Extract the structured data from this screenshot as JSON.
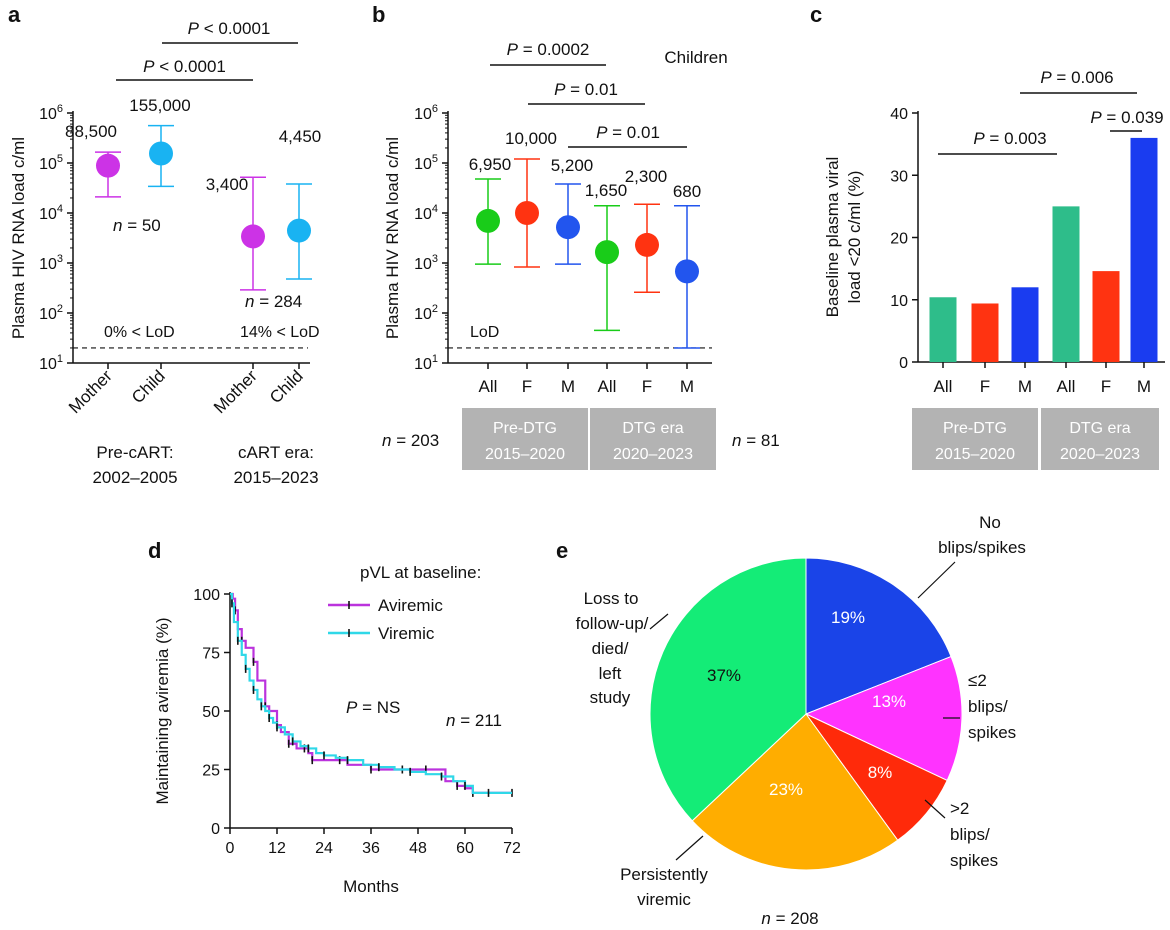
{
  "colors": {
    "magenta": "#cc33e6",
    "cyan": "#19b3f2",
    "green": "#19cc19",
    "red": "#ff3311",
    "blue": "#2255ee",
    "teal": "#2ebd8a",
    "bar_red": "#ff3311",
    "bar_blue": "#1a3cf0",
    "pie_green": "#14ec77",
    "pie_blue": "#1a44e8",
    "pie_magenta": "#ff33ff",
    "pie_red": "#ff2a0a",
    "pie_orange": "#ffad00",
    "km_aviremic": "#bb33dd",
    "km_viremic": "#2fd8e8",
    "group_box": "#b3b3b3"
  },
  "panel_letters": [
    "a",
    "b",
    "c",
    "d",
    "e"
  ],
  "chart_data": [
    {
      "panel": "a",
      "type": "scatter",
      "ylabel": "Plasma HIV RNA load c/ml",
      "yscale": "log",
      "ylim": [
        10,
        1000000
      ],
      "yticks": [
        "10",
        "10",
        "10",
        "10",
        "10",
        "10"
      ],
      "ytick_exponents": [
        "1",
        "2",
        "3",
        "4",
        "5",
        "6"
      ],
      "categories": [
        "Mother",
        "Child",
        "Mother",
        "Child"
      ],
      "medians": [
        88500,
        155000,
        3400,
        4450
      ],
      "median_labels": [
        "88,500",
        "155,000",
        "3,400",
        "4,450"
      ],
      "whisker_low": [
        21000,
        34000,
        290,
        480
      ],
      "whisker_high": [
        165000,
        560000,
        52000,
        38000
      ],
      "colors": [
        "#cc33e6",
        "#19b3f2",
        "#cc33e6",
        "#19b3f2"
      ],
      "groups": [
        {
          "line1": "Pre-cART:",
          "line2": "2002–2005",
          "n_italic": "n",
          "n_value": " = 50",
          "lod": "0% < LoD"
        },
        {
          "line1": "cART era:",
          "line2": "2015–2023",
          "n_italic": "n",
          "n_value": " = 284",
          "lod": "14% < LoD"
        }
      ],
      "lod_value": 20,
      "comparisons": [
        {
          "p_italic": "P",
          "p_value": " < 0.0001"
        },
        {
          "p_italic": "P",
          "p_value": " < 0.0001"
        }
      ]
    },
    {
      "panel": "b",
      "type": "scatter",
      "title": "Children",
      "ylabel": "Plasma HIV RNA load c/ml",
      "yscale": "log",
      "ylim": [
        10,
        1000000
      ],
      "categories": [
        "All",
        "F",
        "M",
        "All",
        "F",
        "M"
      ],
      "medians": [
        6950,
        10000,
        5200,
        1650,
        2300,
        680
      ],
      "median_labels": [
        "6,950",
        "10,000",
        "5,200",
        "1,650",
        "2,300",
        "680"
      ],
      "whisker_low": [
        950,
        830,
        950,
        45,
        260,
        20
      ],
      "whisker_high": [
        48000,
        120000,
        38000,
        14000,
        15000,
        14000
      ],
      "colors": [
        "#19cc19",
        "#ff3311",
        "#2255ee",
        "#19cc19",
        "#ff3311",
        "#2255ee"
      ],
      "lod_label": "LoD",
      "lod_value": 20,
      "groups": [
        {
          "line1": "Pre-DTG",
          "line2": "2015–2020",
          "n_italic": "n",
          "n_value": " = 203"
        },
        {
          "line1": "DTG era",
          "line2": "2020–2023",
          "n_italic": "n",
          "n_value": " = 81"
        }
      ],
      "comparisons": [
        {
          "p_italic": "P",
          "p_value": " = 0.0002"
        },
        {
          "p_italic": "P",
          "p_value": " = 0.01"
        },
        {
          "p_italic": "P",
          "p_value": " = 0.01"
        }
      ]
    },
    {
      "panel": "c",
      "type": "bar",
      "ylabel_line1": "Baseline plasma viral",
      "ylabel_line2": "load <20 c/ml (%)",
      "ylim": [
        0,
        40
      ],
      "yticks": [
        "0",
        "10",
        "20",
        "30",
        "40"
      ],
      "categories": [
        "All",
        "F",
        "M",
        "All",
        "F",
        "M"
      ],
      "values": [
        10.4,
        9.4,
        12.0,
        25.0,
        14.6,
        36.0
      ],
      "colors": [
        "#2ebd8a",
        "#ff3311",
        "#1a3cf0",
        "#2ebd8a",
        "#ff3311",
        "#1a3cf0"
      ],
      "groups": [
        {
          "line1": "Pre-DTG",
          "line2": "2015–2020"
        },
        {
          "line1": "DTG era",
          "line2": "2020–2023"
        }
      ],
      "comparisons": [
        {
          "p_italic": "P",
          "p_value": " = 0.003"
        },
        {
          "p_italic": "P",
          "p_value": " = 0.006"
        },
        {
          "p_italic": "P",
          "p_value": " = 0.039"
        }
      ]
    },
    {
      "panel": "d",
      "type": "line",
      "xlabel": "Months",
      "ylabel": "Maintaining aviremia (%)",
      "xlim": [
        0,
        72
      ],
      "ylim": [
        0,
        100
      ],
      "xticks": [
        "0",
        "12",
        "24",
        "36",
        "48",
        "60",
        "72"
      ],
      "yticks": [
        "0",
        "25",
        "50",
        "75",
        "100"
      ],
      "legend_title": "pVL at baseline:",
      "annotation_p_italic": "P",
      "annotation_p_value": " = NS",
      "annotation_n_italic": "n",
      "annotation_n_value": " = 211",
      "series": [
        {
          "name": "Aviremic",
          "color": "#bb33dd",
          "x": [
            0,
            0.7,
            1.3,
            2,
            3,
            4,
            6,
            7,
            9,
            10,
            12,
            13,
            15,
            17,
            19,
            20,
            21,
            24,
            28,
            30,
            36,
            40,
            44,
            48,
            50,
            55,
            58,
            60,
            62,
            66,
            72
          ],
          "y": [
            100,
            98,
            93,
            85,
            80,
            77,
            71,
            63,
            52,
            50,
            44,
            41,
            36,
            34,
            34,
            32,
            29,
            29,
            29,
            27,
            25,
            25,
            25,
            25,
            25,
            20,
            18,
            17,
            15,
            15,
            15
          ]
        },
        {
          "name": "Viremic",
          "color": "#2fd8e8",
          "x": [
            0,
            0.5,
            1,
            2,
            3,
            4,
            5,
            6,
            7,
            8,
            9,
            10,
            11,
            12,
            14,
            16,
            18,
            20,
            22,
            24,
            27,
            30,
            34,
            38,
            42,
            46,
            50,
            54,
            57,
            60,
            62,
            66,
            72
          ],
          "y": [
            100,
            96,
            88,
            80,
            74,
            68,
            63,
            59,
            55,
            52,
            50,
            47,
            45,
            43,
            40,
            37,
            35,
            34,
            32,
            31,
            30,
            29,
            27,
            26,
            25,
            24,
            23,
            22,
            20,
            18,
            15,
            15,
            15
          ]
        }
      ]
    },
    {
      "panel": "e",
      "type": "pie",
      "n_italic": "n",
      "n_value": " = 208",
      "slices": [
        {
          "value": 19,
          "label": "19%",
          "color": "#1a44e8",
          "label_fill": "#ffffff",
          "outer_lines": [
            "No",
            "blips/spikes"
          ]
        },
        {
          "value": 13,
          "label": "13%",
          "color": "#ff33ff",
          "label_fill": "#ffffff",
          "outer_lines": [
            "≤2",
            "blips/",
            "spikes"
          ]
        },
        {
          "value": 8,
          "label": "8%",
          "color": "#ff2a0a",
          "label_fill": "#ffffff",
          "outer_lines": [
            ">2",
            "blips/",
            "spikes"
          ]
        },
        {
          "value": 23,
          "label": "23%",
          "color": "#ffad00",
          "label_fill": "#ffffff",
          "outer_lines": [
            "Persistently",
            "viremic"
          ]
        },
        {
          "value": 37,
          "label": "37%",
          "color": "#14ec77",
          "label_fill": "#111111",
          "outer_lines": [
            "Loss to",
            "follow-up/",
            "died/",
            "left",
            "study"
          ]
        }
      ]
    }
  ]
}
